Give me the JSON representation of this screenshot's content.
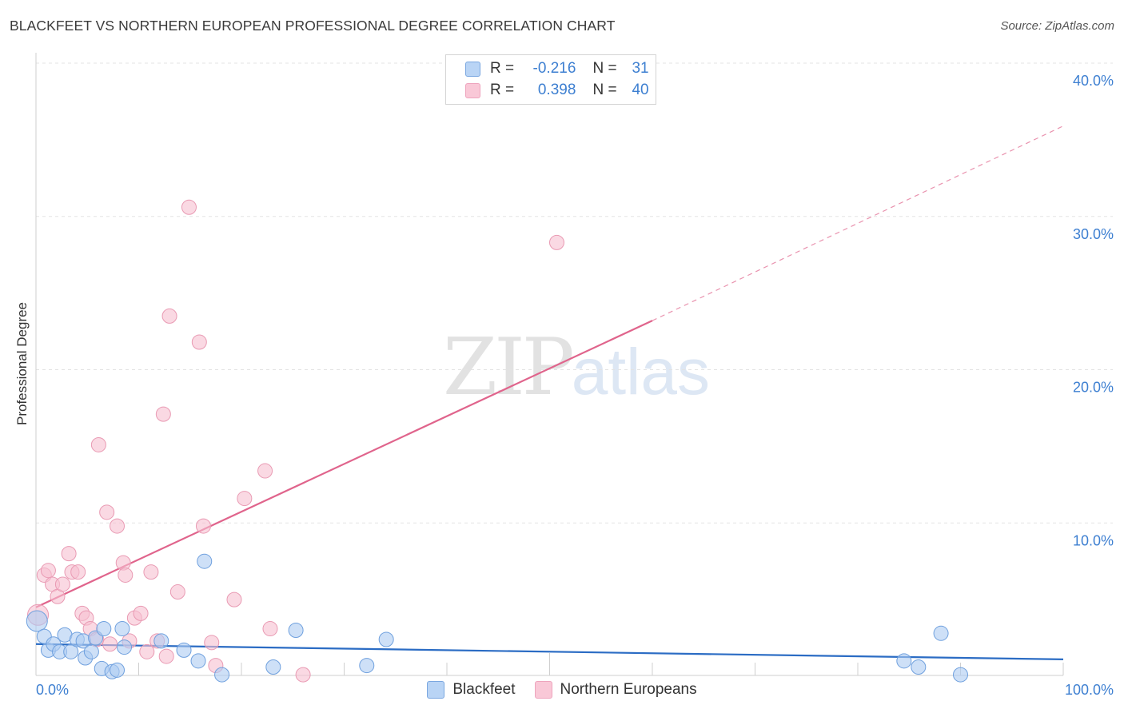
{
  "title": "BLACKFEET VS NORTHERN EUROPEAN PROFESSIONAL DEGREE CORRELATION CHART",
  "source": "Source: ZipAtlas.com",
  "watermark": {
    "zip": "ZIP",
    "atlas": "atlas"
  },
  "colors": {
    "blue_fill": "#aecbf2",
    "blue_stroke": "#6fa0de",
    "blue_line": "#2b6cc4",
    "pink_fill": "#f7bfd0",
    "pink_stroke": "#e99ab3",
    "pink_line": "#e0648c",
    "grid": "#e3e3e3",
    "tick_label": "#3d7fd1"
  },
  "legend": {
    "rows": [
      {
        "r_label": "R =",
        "r_value": "-0.216",
        "n_label": "N =",
        "n_value": "31"
      },
      {
        "r_label": "R =",
        "r_value": "0.398",
        "n_label": "N =",
        "n_value": "40"
      }
    ]
  },
  "chart_data": {
    "type": "scatter",
    "title": "BLACKFEET VS NORTHERN EUROPEAN PROFESSIONAL DEGREE CORRELATION CHART",
    "xlabel": "",
    "ylabel": "Professional Degree",
    "xlim": [
      0,
      100
    ],
    "ylim": [
      0,
      40
    ],
    "x_tick_labels": [
      "0.0%",
      "100.0%"
    ],
    "y_ticks": [
      10,
      20,
      30,
      40
    ],
    "y_tick_labels": [
      "10.0%",
      "20.0%",
      "30.0%",
      "40.0%"
    ],
    "grid": true,
    "series": [
      {
        "name": "Blackfeet",
        "r": -0.216,
        "n": 31,
        "trend": {
          "x0": 0,
          "y0": 2.1,
          "x1": 100,
          "y1": 1.1
        },
        "points": [
          [
            0.1,
            3.6
          ],
          [
            0.8,
            2.6
          ],
          [
            1.2,
            1.7
          ],
          [
            1.7,
            2.1
          ],
          [
            2.3,
            1.6
          ],
          [
            2.8,
            2.7
          ],
          [
            3.4,
            1.6
          ],
          [
            4.0,
            2.4
          ],
          [
            4.6,
            2.3
          ],
          [
            4.8,
            1.2
          ],
          [
            5.4,
            1.6
          ],
          [
            5.8,
            2.5
          ],
          [
            6.4,
            0.5
          ],
          [
            6.6,
            3.1
          ],
          [
            7.4,
            0.3
          ],
          [
            7.9,
            0.4
          ],
          [
            8.4,
            3.1
          ],
          [
            8.6,
            1.9
          ],
          [
            12.2,
            2.3
          ],
          [
            14.4,
            1.7
          ],
          [
            15.8,
            1.0
          ],
          [
            16.4,
            7.5
          ],
          [
            18.1,
            0.1
          ],
          [
            23.1,
            0.6
          ],
          [
            25.3,
            3.0
          ],
          [
            32.2,
            0.7
          ],
          [
            34.1,
            2.4
          ],
          [
            84.5,
            1.0
          ],
          [
            85.9,
            0.6
          ],
          [
            88.1,
            2.8
          ],
          [
            90.0,
            0.1
          ]
        ]
      },
      {
        "name": "Northern Europeans",
        "r": 0.398,
        "n": 40,
        "trend": {
          "x0": 0,
          "y0": 4.5,
          "x1": 60,
          "y1": 23.2,
          "dash_x1": 100,
          "dash_y1": 35.9
        },
        "points": [
          [
            0.2,
            4.0
          ],
          [
            0.8,
            6.6
          ],
          [
            1.2,
            6.9
          ],
          [
            1.6,
            6.0
          ],
          [
            2.1,
            5.2
          ],
          [
            2.6,
            6.0
          ],
          [
            3.2,
            8.0
          ],
          [
            3.5,
            6.8
          ],
          [
            4.1,
            6.8
          ],
          [
            4.5,
            4.1
          ],
          [
            4.9,
            3.8
          ],
          [
            5.3,
            3.1
          ],
          [
            5.9,
            2.4
          ],
          [
            6.1,
            15.1
          ],
          [
            6.9,
            10.7
          ],
          [
            7.2,
            2.1
          ],
          [
            7.9,
            9.8
          ],
          [
            8.5,
            7.4
          ],
          [
            8.7,
            6.6
          ],
          [
            9.1,
            2.3
          ],
          [
            9.6,
            3.8
          ],
          [
            10.2,
            4.1
          ],
          [
            10.8,
            1.6
          ],
          [
            11.2,
            6.8
          ],
          [
            11.8,
            2.3
          ],
          [
            12.4,
            17.1
          ],
          [
            12.7,
            1.3
          ],
          [
            13.0,
            23.5
          ],
          [
            13.8,
            5.5
          ],
          [
            14.9,
            30.6
          ],
          [
            15.9,
            21.8
          ],
          [
            16.3,
            9.8
          ],
          [
            17.1,
            2.2
          ],
          [
            17.5,
            0.7
          ],
          [
            19.3,
            5.0
          ],
          [
            20.3,
            11.6
          ],
          [
            22.3,
            13.4
          ],
          [
            22.8,
            3.1
          ],
          [
            26.0,
            0.1
          ],
          [
            50.7,
            28.3
          ]
        ]
      }
    ]
  },
  "bottom_legend": [
    "Blackfeet",
    "Northern Europeans"
  ]
}
